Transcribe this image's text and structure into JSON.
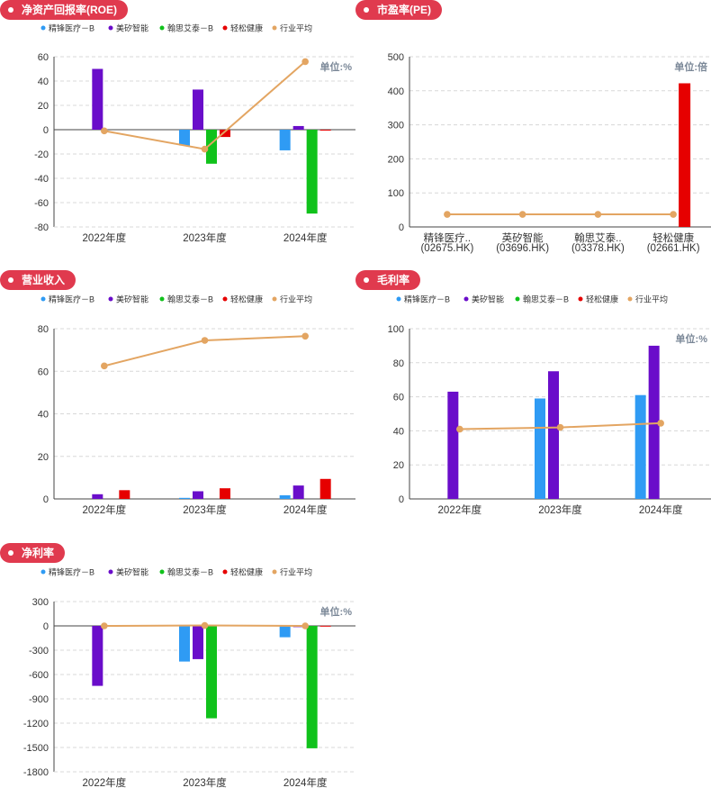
{
  "colors": {
    "tag_bg": "#e03a4e",
    "series": [
      "#2f9bf4",
      "#6a0dca",
      "#10c21b",
      "#e60000",
      "#e3a562"
    ],
    "grid": "#d8d8d8",
    "axis": "#444444"
  },
  "legend_labels": [
    "精锋医疗－B",
    "美矽智能",
    "翰思艾泰－B",
    "轻松健康",
    "行业平均"
  ],
  "charts": {
    "roe": {
      "tag": "净资产回报率(ROE)",
      "unit": "单位:%",
      "chart_data": {
        "type": "bar",
        "categories": [
          "2022年度",
          "2023年度",
          "2024年度"
        ],
        "ylim": [
          -80,
          60
        ],
        "yticks": [
          "60",
          "40",
          "20",
          "0",
          "-20",
          "-40",
          "-60",
          "-80"
        ],
        "series": [
          {
            "name": "精锋医疗－B",
            "values": [
              null,
              -13,
              -17
            ]
          },
          {
            "name": "美矽智能",
            "values": [
              50,
              33,
              3
            ]
          },
          {
            "name": "翰思艾泰－B",
            "values": [
              null,
              -28,
              -69
            ]
          },
          {
            "name": "轻松健康",
            "values": [
              null,
              -6,
              -0.5
            ]
          }
        ],
        "line": {
          "name": "行业平均",
          "values": [
            -1,
            -16,
            56
          ]
        }
      }
    },
    "pe": {
      "tag": "市盈率(PE)",
      "unit": "单位:倍",
      "chart_data": {
        "type": "bar",
        "categories": [
          "精锋医疗..",
          "英矽智能",
          "翰思艾泰..",
          "轻松健康"
        ],
        "subcategories": [
          "(02675.HK)",
          "(03696.HK)",
          "(03378.HK)",
          "(02661.HK)"
        ],
        "ylim": [
          0,
          500
        ],
        "yticks": [
          "500",
          "400",
          "300",
          "200",
          "100",
          "0"
        ],
        "bars": [
          null,
          null,
          null,
          422
        ],
        "line": {
          "name": "行业平均",
          "values": [
            37,
            37,
            37,
            37
          ]
        }
      }
    },
    "revenue": {
      "tag": "营业收入",
      "chart_data": {
        "type": "bar",
        "categories": [
          "2022年度",
          "2023年度",
          "2024年度"
        ],
        "ylim": [
          0,
          80
        ],
        "yticks": [
          "80",
          "60",
          "40",
          "20",
          "0"
        ],
        "series": [
          {
            "name": "精锋医疗－B",
            "values": [
              null,
              0.5,
              1.7
            ]
          },
          {
            "name": "美矽智能",
            "values": [
              2.2,
              3.6,
              6.3
            ]
          },
          {
            "name": "翰思艾泰－B",
            "values": [
              null,
              null,
              null
            ]
          },
          {
            "name": "轻松健康",
            "values": [
              4.1,
              5.0,
              9.4
            ]
          }
        ],
        "line": {
          "name": "行业平均",
          "values": [
            62.5,
            74.5,
            76.5
          ]
        }
      }
    },
    "gross": {
      "tag": "毛利率",
      "unit": "单位:%",
      "chart_data": {
        "type": "bar",
        "categories": [
          "2022年度",
          "2023年度",
          "2024年度"
        ],
        "ylim": [
          0,
          100
        ],
        "yticks": [
          "100",
          "80",
          "60",
          "40",
          "20",
          "0"
        ],
        "series": [
          {
            "name": "精锋医疗－B",
            "values": [
              null,
              59,
              61
            ]
          },
          {
            "name": "美矽智能",
            "values": [
              63,
              75,
              90
            ]
          },
          {
            "name": "翰思艾泰－B",
            "values": [
              null,
              null,
              null
            ]
          },
          {
            "name": "轻松健康",
            "values": [
              null,
              null,
              null
            ]
          }
        ],
        "line": {
          "name": "行业平均",
          "values": [
            41,
            42,
            44.5
          ]
        }
      }
    },
    "net": {
      "tag": "净利率",
      "unit": "单位:%",
      "chart_data": {
        "type": "bar",
        "categories": [
          "2022年度",
          "2023年度",
          "2024年度"
        ],
        "ylim": [
          -1800,
          300
        ],
        "yticks": [
          "300",
          "0",
          "-300",
          "-600",
          "-900",
          "-1200",
          "-1500",
          "-1800"
        ],
        "series": [
          {
            "name": "精锋医疗－B",
            "values": [
              null,
              -440,
              -140
            ]
          },
          {
            "name": "美矽智能",
            "values": [
              -740,
              -410,
              -15
            ]
          },
          {
            "name": "翰思艾泰－B",
            "values": [
              null,
              -1140,
              -1510
            ]
          },
          {
            "name": "轻松健康",
            "values": [
              null,
              10,
              2
            ]
          }
        ],
        "line": {
          "name": "行业平均",
          "values": [
            0,
            5,
            0
          ]
        }
      }
    }
  }
}
